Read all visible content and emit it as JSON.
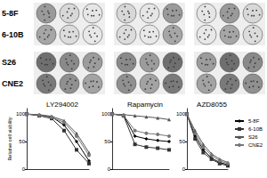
{
  "panel_a": {
    "row_labels": [
      "5-8F",
      "6-10B",
      "S26",
      "CNE2"
    ]
  },
  "chart_data": [
    {
      "type": "line",
      "title": "LY294002",
      "ylabel": "Relative cell viability",
      "categories": [
        null,
        null,
        null,
        null,
        null,
        null
      ],
      "ylim": [
        0,
        110
      ],
      "yticks": [
        0,
        50,
        100
      ],
      "tick_labels": "y",
      "grid": false,
      "series": [
        {
          "name": "5-8F",
          "color": "#000000",
          "marker": "diamond",
          "values": [
            100,
            98,
            95,
            80,
            50,
            15
          ]
        },
        {
          "name": "6-10B",
          "color": "#333333",
          "marker": "rect",
          "values": [
            100,
            97,
            92,
            70,
            35,
            10
          ]
        },
        {
          "name": "S26",
          "color": "#555555",
          "marker": "triangle",
          "values": [
            100,
            99,
            96,
            88,
            65,
            30
          ]
        },
        {
          "name": "CNE2",
          "color": "#777777",
          "marker": "circle",
          "values": [
            100,
            98,
            94,
            85,
            60,
            25
          ]
        }
      ]
    },
    {
      "type": "line",
      "title": "Rapamycin",
      "categories": [
        null,
        null,
        null,
        null,
        null,
        null
      ],
      "ylim": [
        0,
        110
      ],
      "yticks": [
        0,
        50,
        100
      ],
      "tick_labels": "y",
      "grid": false,
      "series": [
        {
          "name": "5-8F",
          "color": "#000000",
          "marker": "diamond",
          "values": [
            100,
            98,
            60,
            55,
            52,
            50
          ]
        },
        {
          "name": "6-10B",
          "color": "#333333",
          "marker": "rect",
          "values": [
            100,
            97,
            45,
            40,
            38,
            35
          ]
        },
        {
          "name": "S26",
          "color": "#555555",
          "marker": "triangle",
          "values": [
            100,
            99,
            97,
            95,
            93,
            90
          ]
        },
        {
          "name": "CNE2",
          "color": "#777777",
          "marker": "circle",
          "values": [
            100,
            98,
            70,
            65,
            63,
            60
          ]
        }
      ]
    },
    {
      "type": "line",
      "title": "AZD8055",
      "categories": [
        null,
        null,
        null,
        null,
        null,
        null
      ],
      "ylim": [
        0,
        110
      ],
      "yticks": [
        0,
        50,
        100
      ],
      "tick_labels": "y",
      "grid": false,
      "legend": "right",
      "series": [
        {
          "name": "5-8F",
          "color": "#000000",
          "marker": "diamond",
          "values": [
            100,
            60,
            35,
            20,
            12,
            8
          ]
        },
        {
          "name": "6-10B",
          "color": "#333333",
          "marker": "rect",
          "values": [
            100,
            55,
            30,
            18,
            10,
            6
          ]
        },
        {
          "name": "S26",
          "color": "#555555",
          "marker": "triangle",
          "values": [
            100,
            70,
            45,
            28,
            18,
            12
          ]
        },
        {
          "name": "CNE2",
          "color": "#777777",
          "marker": "circle",
          "values": [
            100,
            65,
            40,
            25,
            15,
            10
          ]
        }
      ]
    }
  ]
}
